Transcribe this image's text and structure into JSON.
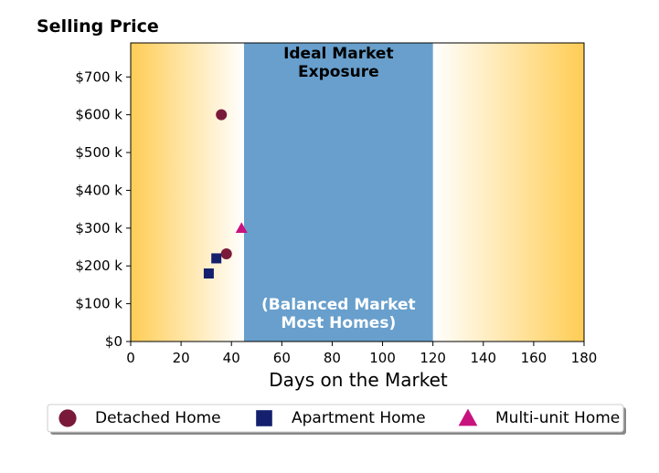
{
  "chart_data": {
    "type": "scatter",
    "title": "",
    "ylabel": "Selling Price",
    "xlabel": "Days on the Market",
    "xlim": [
      0,
      180
    ],
    "ylim": [
      0,
      790000
    ],
    "x_ticks": [
      0,
      20,
      40,
      60,
      80,
      100,
      120,
      140,
      160,
      180
    ],
    "x_tick_labels": [
      "0",
      "20",
      "40",
      "60",
      "80",
      "100",
      "120",
      "140",
      "160",
      "180"
    ],
    "y_ticks": [
      0,
      100000,
      200000,
      300000,
      400000,
      500000,
      600000,
      700000
    ],
    "y_tick_labels": [
      "$0",
      "$100 k",
      "$200 k",
      "$300 k",
      "$400 k",
      "$500 k",
      "$600 k",
      "$700 k"
    ],
    "grid": false,
    "legend_position": "bottom",
    "background_gradient": {
      "edge_color": "#FFCD55",
      "mid_color": "#FFFFFF",
      "left_range": [
        0,
        45
      ],
      "right_range": [
        120,
        180
      ]
    },
    "band": {
      "x_start": 45,
      "x_end": 120,
      "color": "#689FCC",
      "label_top": [
        "Ideal Market",
        "Exposure"
      ],
      "label_bottom": [
        "(Balanced Market",
        "Most Homes)"
      ]
    },
    "series": [
      {
        "name": "Detached Home",
        "marker": "circle",
        "color": "#7A1A3A",
        "points": [
          {
            "x": 36,
            "y": 600000
          },
          {
            "x": 38,
            "y": 232000
          }
        ]
      },
      {
        "name": "Apartment Home",
        "marker": "square",
        "color": "#14206E",
        "points": [
          {
            "x": 34,
            "y": 220000
          },
          {
            "x": 31,
            "y": 180000
          }
        ]
      },
      {
        "name": "Multi-unit Home",
        "marker": "triangle",
        "color": "#C8137F",
        "points": [
          {
            "x": 44,
            "y": 300000
          }
        ]
      }
    ]
  }
}
